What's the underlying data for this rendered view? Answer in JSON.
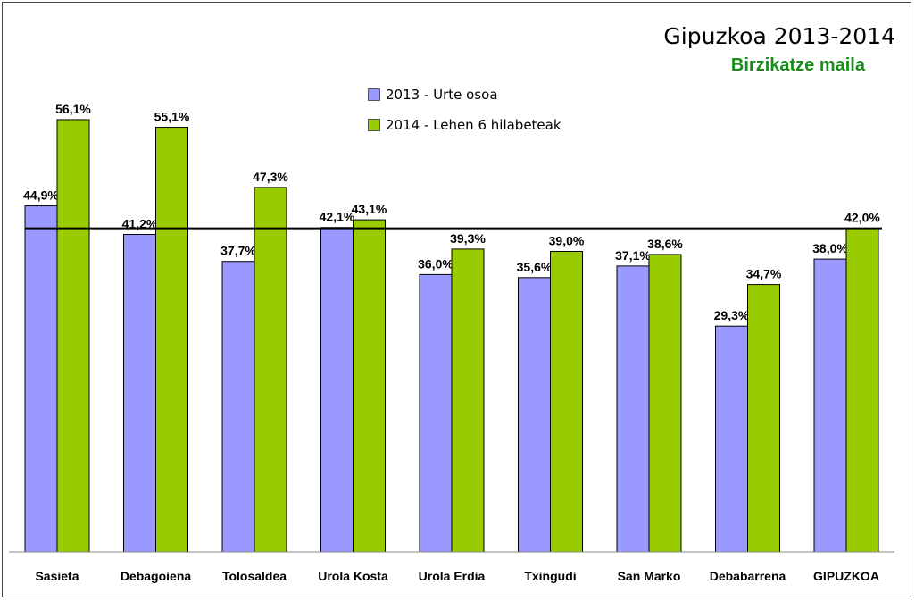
{
  "chart_data": {
    "type": "bar",
    "title": "Gipuzkoa 2013-2014",
    "subtitle": "Birzikatze maila",
    "categories": [
      "Sasieta",
      "Debagoiena",
      "Tolosaldea",
      "Urola Kosta",
      "Urola Erdia",
      "Txingudi",
      "San Marko",
      "Debabarrena",
      "GIPUZKOA"
    ],
    "series": [
      {
        "name": "2013 - Urte osoa",
        "color": "#9999ff",
        "values": [
          44.9,
          41.2,
          37.7,
          42.1,
          36.0,
          35.6,
          37.1,
          29.3,
          38.0
        ],
        "labels": [
          "44,9%",
          "41,2%",
          "37,7%",
          "42,1%",
          "36,0%",
          "35,6%",
          "37,1%",
          "29,3%",
          "38,0%"
        ]
      },
      {
        "name": "2014 - Lehen 6 hilabeteak",
        "color": "#99cc00",
        "values": [
          56.1,
          55.1,
          47.3,
          43.1,
          39.3,
          39.0,
          38.6,
          34.7,
          42.0
        ],
        "labels": [
          "56,1%",
          "55,1%",
          "47,3%",
          "43,1%",
          "39,3%",
          "39,0%",
          "38,6%",
          "34,7%",
          "42,0%"
        ]
      }
    ],
    "reference_line": 42.0,
    "ylim": [
      0,
      70
    ],
    "grid": false,
    "legend_position": "top-center"
  }
}
